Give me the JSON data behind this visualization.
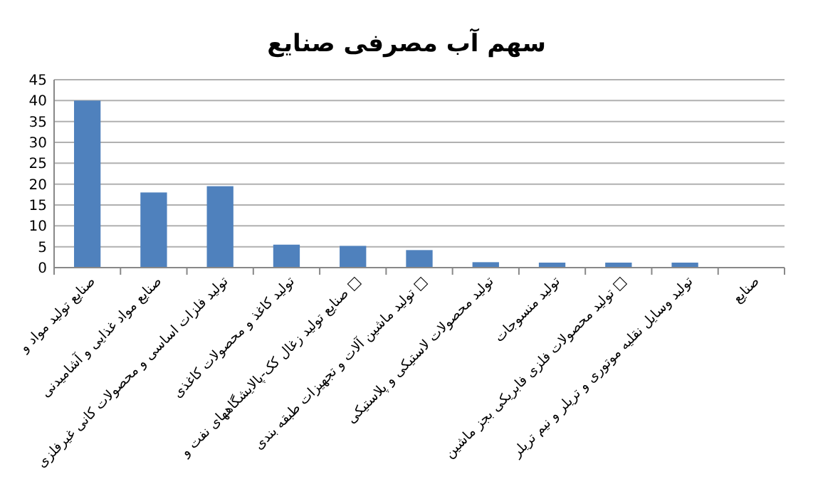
{
  "chart_data": {
    "type": "bar",
    "title": "سهم آب مصرفی صنایع",
    "categories": [
      "صنایع تولید مواد و",
      "صنایع مواد غذایی و آشامیدنی",
      "تولید فلزات اساسی و محصولات کانی غیرفلزی",
      "تولید کاغذ و محصولات کاغذی",
      "صنایع تولید زغال کک-پالایشگاههای نفت و □",
      "تولید ماشین آلات و تجهیزات طبقه بندی □",
      "تولید محصولات لاستیکی و پلاستیکی",
      "تولید منسوجات",
      "تولید محصولات فلزی فابریکی بجز ماشین □",
      "تولید وسایل نقلیه موتوری و تریلر و نیم تریلر",
      "صنایع"
    ],
    "values": [
      40,
      18,
      19.5,
      5.5,
      5.2,
      4.2,
      1.3,
      1.2,
      1.2,
      1.2,
      null
    ],
    "color": "#4f81bd",
    "ylim": [
      0,
      45
    ],
    "yticks": [
      0,
      5,
      10,
      15,
      20,
      25,
      30,
      35,
      40,
      45
    ],
    "grid": "y"
  }
}
